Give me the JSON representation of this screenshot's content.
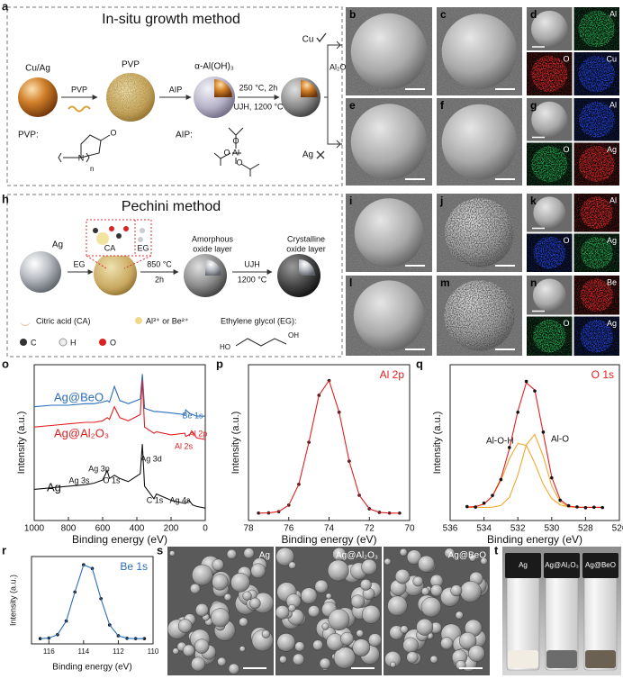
{
  "scheme_a": {
    "label": "a",
    "title": "In-situ growth method",
    "core": "Cu/Ag",
    "coating": "PVP",
    "step_pvp": "PVP",
    "step_aip": "AIP",
    "hydroxide": "α-Al(OH)₃",
    "cond1": "250 °C, 2h",
    "cond2": "UJH, 1200 °C",
    "oxide": "Al₂O₃",
    "branch_ok": "Cu",
    "branch_fail": "Ag",
    "pvp_label": "PVP:",
    "pvp_atoms": [
      "O",
      "N"
    ],
    "pvp_n": "n",
    "aip_label": "AIP:",
    "aip_atoms": [
      "O",
      "Al",
      "O",
      "O"
    ]
  },
  "images": [
    {
      "label": "b"
    },
    {
      "label": "c"
    },
    {
      "label": "d",
      "maps": [
        "Al",
        "O",
        "Cu"
      ]
    },
    {
      "label": "e"
    },
    {
      "label": "f"
    },
    {
      "label": "g",
      "maps": [
        "Al",
        "O",
        "Ag"
      ]
    },
    {
      "label": "i"
    },
    {
      "label": "j"
    },
    {
      "label": "k",
      "maps": [
        "Al",
        "O",
        "Ag"
      ]
    },
    {
      "label": "l"
    },
    {
      "label": "m"
    },
    {
      "label": "n",
      "maps": [
        "Be",
        "O",
        "Ag"
      ]
    }
  ],
  "scheme_h": {
    "label": "h",
    "title": "Pechini method",
    "core": "Ag",
    "step_eg": "EG",
    "ca": "CA",
    "eg": "EG",
    "cond1": "850 °C",
    "cond1b": "2h",
    "amorphous": [
      "Amorphous",
      "oxide layer"
    ],
    "step_ujh": "UJH",
    "cond2": "1200 °C",
    "crystalline": [
      "Crystalline",
      "oxide layer"
    ],
    "legend": {
      "ca": "Citric acid (CA)",
      "ion": "Al³⁺ or Be²⁺",
      "eg": "Ethylene glycol (EG):",
      "c": "C",
      "h": "H",
      "o": "O",
      "eg_oh": "OH",
      "eg_ho": "HO"
    }
  },
  "chart_data": [
    {
      "type": "line",
      "label": "o",
      "xlabel": "Binding energy (eV)",
      "ylabel": "Intensity (a.u.)",
      "x": [
        1000,
        900,
        800,
        700,
        650,
        600,
        573,
        560,
        531,
        500,
        450,
        380,
        368,
        355,
        300,
        285,
        200,
        120,
        114,
        95,
        74,
        50,
        0
      ],
      "series": [
        {
          "name": "Ag@BeO",
          "color": "#2a6ebb",
          "values": [
            73,
            74,
            74,
            75,
            75,
            76,
            77,
            76,
            86,
            77,
            75,
            78,
            94,
            72,
            70,
            70,
            69,
            68,
            71,
            69,
            68,
            67,
            67
          ]
        },
        {
          "name": "Ag@Al₂O₃",
          "color": "#e02020",
          "values": [
            60,
            61,
            62,
            63,
            63,
            64,
            66,
            65,
            73,
            66,
            64,
            68,
            90,
            60,
            56,
            57,
            55,
            56,
            54,
            55,
            57,
            53,
            52
          ]
        },
        {
          "name": "Ag",
          "color": "#111111",
          "values": [
            20,
            21,
            22,
            23,
            24,
            26,
            32,
            27,
            29,
            27,
            25,
            30,
            49,
            22,
            14,
            17,
            13,
            11,
            11,
            13,
            10,
            9,
            8
          ]
        }
      ],
      "annotations": [
        "Be 1s",
        "Al 2p",
        "Al 2s",
        "Ag 3d",
        "Ag 3s",
        "Ag 3p",
        "O 1s",
        "C 1s",
        "Ag 4s"
      ],
      "xlim": [
        1000,
        0
      ],
      "xticks": [
        1000,
        800,
        600,
        400,
        200,
        0
      ],
      "ylim": [
        0,
        100
      ]
    },
    {
      "type": "line",
      "label": "p",
      "title": "Al 2p",
      "xlabel": "Binding energy (eV)",
      "ylabel": "Intensity (a.u.)",
      "x": [
        77.5,
        77,
        76.5,
        76,
        75.5,
        75,
        74.5,
        74,
        73.5,
        73,
        72.5,
        72,
        71.5,
        71,
        70.5
      ],
      "values": [
        5,
        5.1,
        6,
        10.4,
        24.4,
        52.7,
        84.4,
        94.3,
        73,
        40,
        17,
        7.9,
        5.5,
        5,
        5
      ],
      "color": "#e02020",
      "marker_color": "#111111",
      "xlim": [
        78,
        70
      ],
      "xticks": [
        78,
        76,
        74,
        72,
        70
      ],
      "ylim": [
        0,
        105
      ]
    },
    {
      "type": "line",
      "label": "q",
      "title": "O 1s",
      "xlabel": "Binding energy (eV)",
      "ylabel": "Intensity (a.u.)",
      "x": [
        535,
        534.5,
        534,
        533.5,
        533,
        532.5,
        532,
        531.5,
        531,
        530.5,
        530,
        529.5,
        529,
        528.5,
        528,
        527.5,
        527
      ],
      "series": [
        {
          "name": "Al-O-H",
          "color": "#f0a830",
          "values": [
            8.1,
            8.5,
            10,
            14.7,
            24.4,
            37.6,
            47,
            45.8,
            35,
            22.1,
            13.4,
            9.5,
            8.3,
            8,
            8,
            8,
            8
          ]
        },
        {
          "name": "Al-O",
          "color": "#f0a830",
          "values": [
            8,
            8,
            8,
            8.1,
            9.1,
            14.1,
            27.7,
            46.2,
            52.5,
            39.2,
            21.1,
            11.3,
            8.5,
            8,
            8,
            8,
            8
          ]
        },
        {
          "color": "#e02020",
          "values": [
            8.1,
            8.5,
            10,
            14.8,
            25.5,
            43.7,
            66.7,
            84,
            79.5,
            53.3,
            26.5,
            12.8,
            8.8,
            8.1,
            8,
            8,
            8
          ]
        },
        {
          "color": "#111111",
          "marker": "dot",
          "values": [
            8.5,
            8.2,
            10.6,
            15.3,
            25,
            44.5,
            66,
            84.8,
            79,
            53.9,
            26,
            12.4,
            9,
            8.3,
            7.8,
            8.1,
            7.9
          ]
        }
      ],
      "xlim": [
        536,
        526
      ],
      "xticks": [
        536,
        534,
        532,
        530,
        528,
        526
      ],
      "ylim": [
        0,
        95
      ]
    },
    {
      "type": "line",
      "label": "r",
      "title": "Be 1s",
      "xlabel": "Binding energy (eV)",
      "ylabel": "Intensity (a.u.)",
      "x": [
        116.5,
        116,
        115.5,
        115,
        114.5,
        114,
        113.5,
        113,
        112.5,
        112,
        111.5,
        111,
        110.5
      ],
      "values": [
        6,
        6.6,
        10.6,
        26.2,
        59.4,
        90.5,
        86.3,
        51.8,
        21.7,
        9.3,
        6.4,
        6,
        6
      ],
      "color": "#2a6ebb",
      "marker_color": "#111111",
      "xlim": [
        117,
        110
      ],
      "xticks": [
        116,
        114,
        112,
        110
      ],
      "ylim": [
        0,
        100
      ]
    }
  ],
  "panel_s": {
    "label": "s",
    "images": [
      "Ag",
      "Ag@Al₂O₃",
      "Ag@BeO"
    ]
  },
  "panel_t": {
    "label": "t",
    "vials": [
      "Ag",
      "Ag@Al₂O₃",
      "Ag@BeO"
    ]
  }
}
